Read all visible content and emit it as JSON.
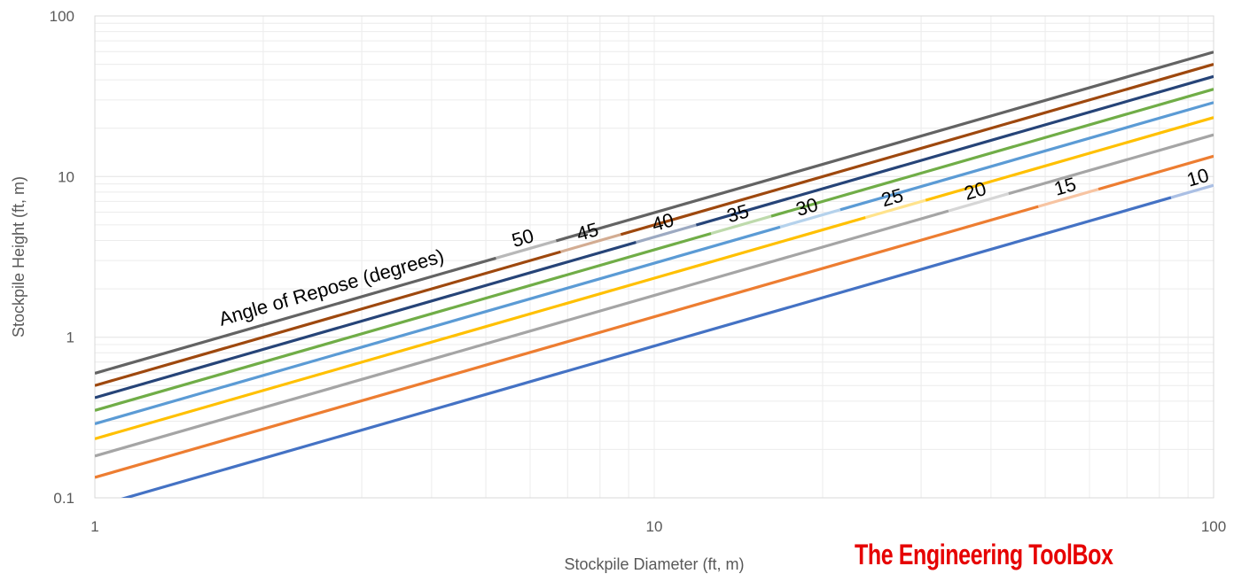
{
  "chart_data": {
    "type": "line",
    "x_scale": "log",
    "y_scale": "log",
    "xlim": [
      1,
      100
    ],
    "ylim": [
      0.1,
      100
    ],
    "xlabel": "Stockpile Diameter (ft, m)",
    "ylabel": "Stockpile Height (ft, m)",
    "x_ticks": [
      "1",
      "10",
      "100"
    ],
    "y_ticks": [
      "0.1",
      "1",
      "10",
      "100"
    ],
    "grid": true,
    "legend": "none",
    "annotation": "Angle of Repose (degrees)",
    "x": [
      1,
      100
    ],
    "series": [
      {
        "name": "10",
        "angle": 10,
        "values": [
          0.088,
          8.82
        ],
        "color": "#4472C4",
        "label_at": 95
      },
      {
        "name": "15",
        "angle": 15,
        "values": [
          0.134,
          13.4
        ],
        "color": "#ED7D31",
        "label_at": 55
      },
      {
        "name": "20",
        "angle": 20,
        "values": [
          0.182,
          18.2
        ],
        "color": "#A5A5A5",
        "label_at": 38
      },
      {
        "name": "25",
        "angle": 25,
        "values": [
          0.233,
          23.3
        ],
        "color": "#FFC000",
        "label_at": 27
      },
      {
        "name": "30",
        "angle": 30,
        "values": [
          0.289,
          28.9
        ],
        "color": "#5B9BD5",
        "label_at": 19
      },
      {
        "name": "35",
        "angle": 35,
        "values": [
          0.35,
          35.0
        ],
        "color": "#70AD47",
        "label_at": 14.3
      },
      {
        "name": "40",
        "angle": 40,
        "values": [
          0.42,
          42.0
        ],
        "color": "#264478",
        "label_at": 10.5
      },
      {
        "name": "45",
        "angle": 45,
        "values": [
          0.5,
          50.0
        ],
        "color": "#9E480E",
        "label_at": 7.7
      },
      {
        "name": "50",
        "angle": 50,
        "values": [
          0.596,
          59.6
        ],
        "color": "#636363",
        "label_at": 5.9
      }
    ]
  },
  "brand": "The Engineering ToolBox"
}
